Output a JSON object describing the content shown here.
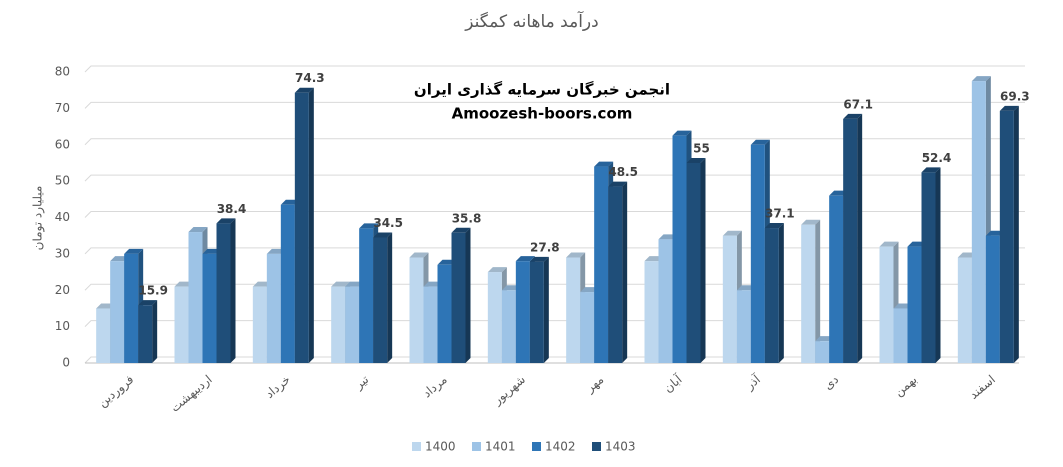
{
  "chart_data": {
    "type": "bar3d",
    "title": "درآمد ماهانه کمگنز",
    "ylabel": "میلیارد تومان",
    "annotations": [
      "انجمن خبرگان سرمایه گذاری ایران",
      "Amoozesh-boors.com"
    ],
    "categories": [
      "فروردین",
      "اردیبهشت",
      "خرداد",
      "تیر",
      "مرداد",
      "شهریور",
      "مهر",
      "آبان",
      "آذر",
      "دی",
      "بهمن",
      "اسفند"
    ],
    "series": [
      {
        "name": "1400",
        "color": "#bdd7ee",
        "values": [
          15,
          21,
          21,
          21,
          29,
          25,
          29,
          28,
          35,
          38,
          32,
          29
        ]
      },
      {
        "name": "1401",
        "color": "#9dc3e6",
        "values": [
          28,
          36,
          30,
          21,
          21,
          20,
          19.5,
          34,
          20,
          6,
          15,
          77.5
        ]
      },
      {
        "name": "1402",
        "color": "#2e75b6",
        "values": [
          30,
          30,
          43.5,
          37,
          27,
          28,
          54,
          62.5,
          60,
          46,
          32,
          35
        ]
      },
      {
        "name": "1403",
        "color": "#1f4e79",
        "data_labels": true,
        "values": [
          15.9,
          38.4,
          74.3,
          34.5,
          35.8,
          27.8,
          48.5,
          55,
          37.1,
          67.1,
          52.4,
          69.3
        ]
      }
    ],
    "ylim": [
      0,
      80
    ],
    "yticks": [
      0,
      10,
      20,
      30,
      40,
      50,
      60,
      70,
      80
    ],
    "grid": true,
    "legend": "bottom"
  }
}
